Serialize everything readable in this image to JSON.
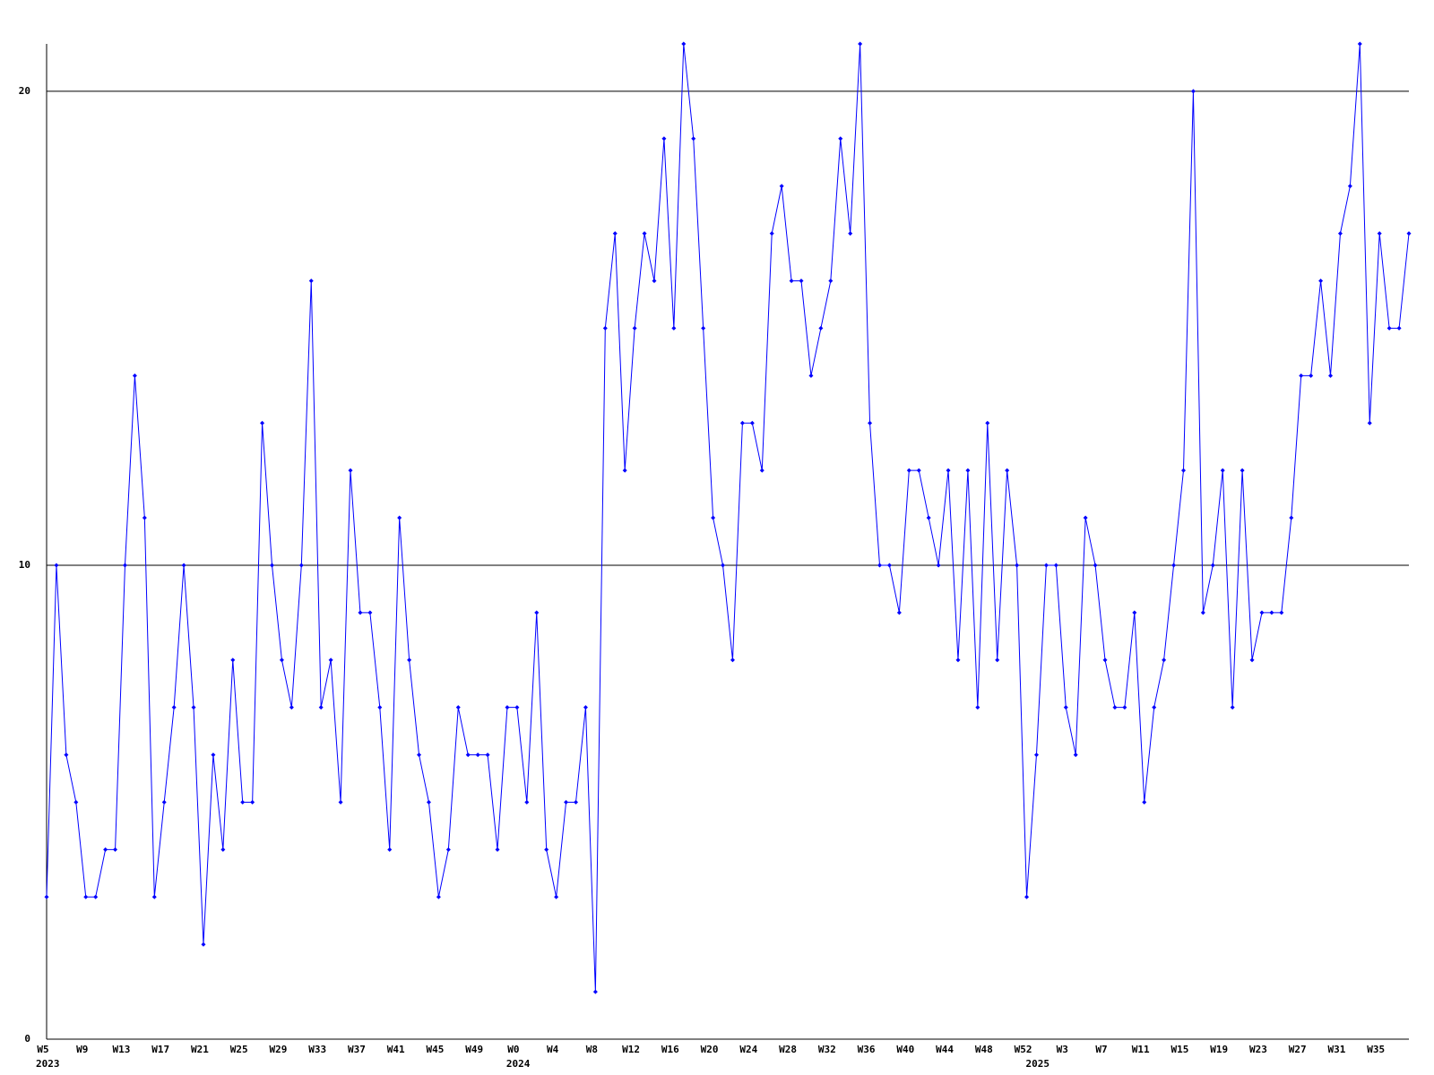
{
  "chart_data": {
    "type": "line",
    "categories": [
      "W5",
      null,
      null,
      null,
      "W9",
      null,
      null,
      null,
      "W13",
      null,
      null,
      null,
      "W17",
      null,
      null,
      null,
      "W21",
      null,
      null,
      null,
      "W25",
      null,
      null,
      null,
      "W29",
      null,
      null,
      null,
      "W33",
      null,
      null,
      null,
      "W37",
      null,
      null,
      null,
      "W41",
      null,
      null,
      null,
      "W45",
      null,
      null,
      null,
      "W49",
      null,
      null,
      null,
      "W0",
      null,
      null,
      null,
      "W4",
      null,
      null,
      null,
      "W8",
      null,
      null,
      null,
      "W12",
      null,
      null,
      null,
      "W16",
      null,
      null,
      null,
      "W20",
      null,
      null,
      null,
      "W24",
      null,
      null,
      null,
      "W28",
      null,
      null,
      null,
      "W32",
      null,
      null,
      null,
      "W36",
      null,
      null,
      null,
      "W40",
      null,
      null,
      null,
      "W44",
      null,
      null,
      null,
      "W48",
      null,
      null,
      null,
      "W52",
      null,
      null,
      null,
      "W3",
      null,
      null,
      null,
      "W7",
      null,
      null,
      null,
      "W11",
      null,
      null,
      null,
      "W15",
      null,
      null,
      null,
      "W19",
      null,
      null,
      null,
      "W23",
      null,
      null,
      null,
      "W27",
      null,
      null,
      null,
      "W31",
      null,
      null,
      null,
      "W35",
      null,
      null,
      null
    ],
    "years": [
      "2023",
      null,
      null,
      null,
      null,
      null,
      null,
      null,
      null,
      null,
      null,
      null,
      null,
      null,
      null,
      null,
      null,
      null,
      null,
      null,
      null,
      null,
      null,
      null,
      null,
      null,
      null,
      null,
      null,
      null,
      null,
      null,
      null,
      null,
      null,
      null,
      null,
      null,
      null,
      null,
      null,
      null,
      null,
      null,
      null,
      null,
      null,
      null,
      "2024",
      null,
      null,
      null,
      null,
      null,
      null,
      null,
      null,
      null,
      null,
      null,
      null,
      null,
      null,
      null,
      null,
      null,
      null,
      null,
      null,
      null,
      null,
      null,
      null,
      null,
      null,
      null,
      null,
      null,
      null,
      null,
      null,
      null,
      null,
      null,
      null,
      null,
      null,
      null,
      null,
      null,
      null,
      null,
      null,
      null,
      null,
      null,
      null,
      null,
      null,
      null,
      null,
      "2025",
      null,
      null,
      null,
      null,
      null,
      null,
      null,
      null,
      null,
      null,
      null,
      null,
      null,
      null,
      null,
      null,
      null,
      null,
      null,
      null,
      null,
      null,
      null,
      null,
      null,
      null,
      null,
      null,
      null,
      null,
      null,
      null,
      null,
      null,
      null,
      null,
      null,
      null
    ],
    "values": [
      3,
      10,
      6,
      5,
      3,
      3,
      4,
      4,
      10,
      14,
      11,
      3,
      5,
      7,
      10,
      7,
      2,
      6,
      4,
      8,
      5,
      5,
      13,
      10,
      8,
      7,
      10,
      16,
      7,
      8,
      5,
      12,
      9,
      9,
      7,
      4,
      11,
      8,
      6,
      5,
      3,
      4,
      7,
      6,
      6,
      6,
      4,
      7,
      7,
      5,
      9,
      4,
      3,
      5,
      5,
      7,
      1,
      15,
      17,
      12,
      15,
      17,
      16,
      19,
      15,
      21,
      19,
      15,
      11,
      10,
      8,
      13,
      13,
      12,
      17,
      18,
      16,
      16,
      14,
      15,
      16,
      19,
      17,
      21,
      13,
      10,
      10,
      9,
      12,
      12,
      11,
      10,
      12,
      8,
      12,
      7,
      13,
      8,
      12,
      10,
      3,
      6,
      10,
      10,
      7,
      6,
      11,
      10,
      8,
      7,
      7,
      9,
      5,
      7,
      8,
      10,
      12,
      20,
      9,
      10,
      12,
      7,
      12,
      8,
      9,
      9,
      9,
      11,
      14,
      14,
      16,
      14,
      17,
      18,
      21,
      13,
      17,
      15,
      15,
      17
    ],
    "color": "#0000ff",
    "ylim": [
      0,
      21
    ],
    "yticks": [
      0,
      10,
      20
    ],
    "grid": true
  }
}
